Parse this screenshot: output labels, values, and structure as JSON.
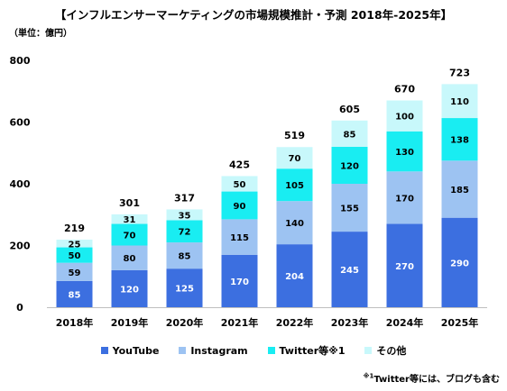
{
  "title": "【インフルエンサーマーケティングの市場規模推計・予測 2018年-2025年】",
  "unit_label": "（単位：億円）",
  "footnote": {
    "mark": "※1",
    "text": "Twitter等には、ブログも含む"
  },
  "colors": {
    "youtube": "#3C6FE0",
    "instagram": "#9DC3F2",
    "twitter": "#19EDF2",
    "other": "#C8F8FB"
  },
  "chart_data": {
    "type": "bar",
    "stacked": true,
    "categories": [
      "2018年",
      "2019年",
      "2020年",
      "2021年",
      "2022年",
      "2023年",
      "2024年",
      "2025年"
    ],
    "series": [
      {
        "name": "YouTube",
        "values": [
          85,
          120,
          125,
          170,
          204,
          245,
          270,
          290
        ]
      },
      {
        "name": "Instagram",
        "values": [
          59,
          80,
          85,
          115,
          140,
          155,
          170,
          185
        ]
      },
      {
        "name": "Twitter等※1",
        "values": [
          50,
          70,
          72,
          90,
          105,
          120,
          130,
          138
        ]
      },
      {
        "name": "その他",
        "values": [
          25,
          31,
          35,
          50,
          70,
          85,
          100,
          110
        ]
      }
    ],
    "totals": [
      219,
      301,
      317,
      425,
      519,
      605,
      670,
      723
    ],
    "ylim": [
      0,
      800
    ],
    "yticks": [
      0,
      200,
      400,
      600,
      800
    ],
    "legend_position": "bottom",
    "grid": false
  }
}
